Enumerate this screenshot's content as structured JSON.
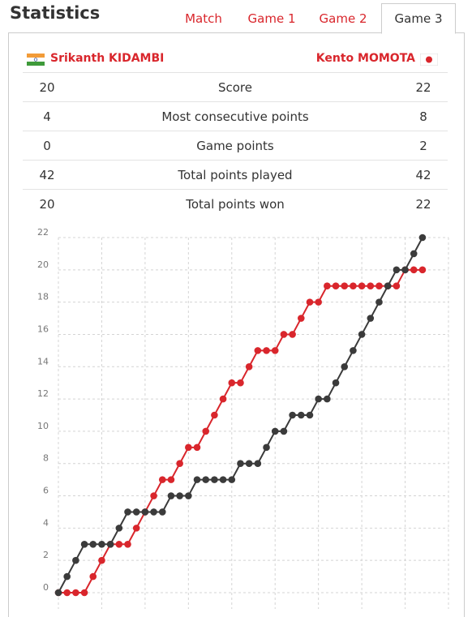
{
  "header": {
    "title": "Statistics",
    "tabs": [
      "Match",
      "Game 1",
      "Game 2",
      "Game 3"
    ],
    "active_tab": 3
  },
  "players": {
    "left": "Srikanth KIDAMBI",
    "right": "Kento MOMOTA"
  },
  "stats": [
    {
      "left": 20,
      "label": "Score",
      "right": 22
    },
    {
      "left": 4,
      "label": "Most consecutive points",
      "right": 8
    },
    {
      "left": 0,
      "label": "Game points",
      "right": 2
    },
    {
      "left": 42,
      "label": "Total points played",
      "right": 42
    },
    {
      "left": 20,
      "label": "Total points won",
      "right": 22
    }
  ],
  "chart_data": {
    "type": "line",
    "x": [
      0,
      1,
      2,
      3,
      4,
      5,
      6,
      7,
      8,
      9,
      10,
      11,
      12,
      13,
      14,
      15,
      16,
      17,
      18,
      19,
      20,
      21,
      22,
      23,
      24,
      25,
      26,
      27,
      28,
      29,
      30,
      31,
      32,
      33,
      34,
      35,
      36,
      37,
      38,
      39,
      40,
      41,
      42
    ],
    "series": [
      {
        "color": "#d9262c",
        "values": [
          0,
          0,
          0,
          0,
          1,
          2,
          3,
          3,
          3,
          4,
          5,
          6,
          7,
          7,
          8,
          9,
          9,
          10,
          11,
          12,
          13,
          13,
          14,
          15,
          15,
          15,
          16,
          16,
          17,
          18,
          18,
          19,
          19,
          19,
          19,
          19,
          19,
          19,
          19,
          19,
          20,
          20,
          20
        ]
      },
      {
        "color": "#3b3b3b",
        "values": [
          0,
          1,
          2,
          3,
          3,
          3,
          3,
          4,
          5,
          5,
          5,
          5,
          5,
          6,
          6,
          6,
          7,
          7,
          7,
          7,
          7,
          8,
          8,
          8,
          9,
          10,
          10,
          11,
          11,
          11,
          12,
          12,
          13,
          14,
          15,
          16,
          17,
          18,
          19,
          20,
          20,
          21,
          22
        ]
      }
    ],
    "xlim": [
      0,
      45
    ],
    "xticks": [
      0,
      5,
      10,
      15,
      20,
      25,
      30,
      35,
      40,
      45
    ],
    "ylim": [
      0,
      22
    ],
    "yticks": [
      0,
      2,
      4,
      6,
      8,
      10,
      12,
      14,
      16,
      18,
      20,
      22
    ],
    "grid": true
  }
}
